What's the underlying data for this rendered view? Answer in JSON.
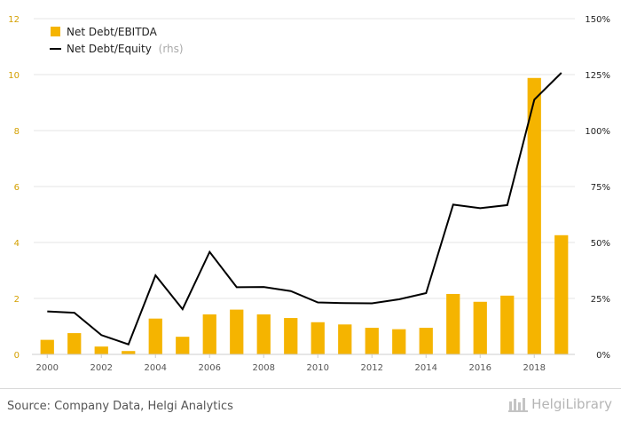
{
  "chart_data": {
    "type": "bar",
    "title": "",
    "xlabel": "",
    "ylabel": "",
    "x": [
      2000,
      2001,
      2002,
      2003,
      2004,
      2005,
      2006,
      2007,
      2008,
      2009,
      2010,
      2011,
      2012,
      2013,
      2014,
      2015,
      2016,
      2017,
      2018,
      2019
    ],
    "x_tick_labels": [
      "2000",
      "2002",
      "2004",
      "2006",
      "2008",
      "2010",
      "2012",
      "2014",
      "2016",
      "2018"
    ],
    "ylim": [
      0,
      12
    ],
    "y_ticks": [
      "0",
      "2",
      "4",
      "6",
      "8",
      "10",
      "12"
    ],
    "y2lim": [
      0,
      150
    ],
    "y2_ticks": [
      "0%",
      "25%",
      "50%",
      "75%",
      "100%",
      "125%",
      "150%"
    ],
    "grid": true,
    "legend_placement": "top-left",
    "series": [
      {
        "name": "Net Debt/EBITDA",
        "type": "bar",
        "axis": "left",
        "color": "#f5b400",
        "values": [
          0.52,
          0.76,
          0.28,
          0.12,
          1.28,
          0.63,
          1.43,
          1.6,
          1.43,
          1.3,
          1.15,
          1.07,
          0.95,
          0.9,
          0.95,
          2.16,
          1.88,
          2.1,
          9.88,
          4.26
        ]
      },
      {
        "name": "Net Debt/Equity",
        "name_suffix": "(rhs)",
        "type": "line",
        "axis": "right",
        "color": "#000000",
        "values": [
          19.2,
          18.6,
          8.6,
          4.5,
          35.3,
          20.2,
          45.8,
          30.0,
          30.1,
          28.3,
          23.2,
          22.9,
          22.8,
          24.6,
          27.4,
          66.9,
          65.3,
          66.7,
          113.8,
          125.8
        ]
      }
    ]
  },
  "footer": {
    "source": "Source: Company Data, Helgi Analytics",
    "brand": "HelgiLibrary"
  },
  "colors": {
    "bar": "#f5b400",
    "line": "#000000",
    "left_axis_text": "#d4a000",
    "right_axis_text": "#222222",
    "grid": "#e6e6e6"
  }
}
